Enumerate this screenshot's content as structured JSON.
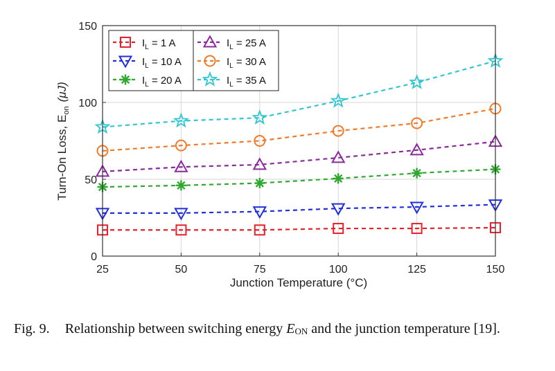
{
  "chart_data": {
    "type": "line",
    "x": [
      25,
      50,
      75,
      100,
      125,
      150
    ],
    "xlabel": "Junction Temperature (°C)",
    "ylabel_main": "Turn-On Loss, E",
    "ylabel_sub": "on",
    "ylabel_unit": "(μJ)",
    "xlim": [
      25,
      150
    ],
    "ylim": [
      0,
      150
    ],
    "yticks": [
      0,
      50,
      100,
      150
    ],
    "xticks": [
      25,
      50,
      75,
      100,
      125,
      150
    ],
    "grid": true,
    "legend_position": "top-left",
    "series": [
      {
        "label_prefix": "I",
        "label_sub": "L",
        "label_suffix": " = 1 A",
        "marker": "square",
        "color": "#e8202a",
        "values": [
          17,
          17,
          17,
          18,
          18,
          18.5
        ]
      },
      {
        "label_prefix": "I",
        "label_sub": "L",
        "label_suffix": " = 10 A",
        "marker": "triangle-down",
        "color": "#1f2fe0",
        "values": [
          28,
          28,
          29,
          31,
          32,
          33.5
        ]
      },
      {
        "label_prefix": "I",
        "label_sub": "L",
        "label_suffix": " = 20 A",
        "marker": "asterisk",
        "color": "#2fa82f",
        "values": [
          45,
          46,
          47.5,
          50.5,
          54,
          56.5
        ]
      },
      {
        "label_prefix": "I",
        "label_sub": "L",
        "label_suffix": " = 25 A",
        "marker": "triangle-up",
        "color": "#8a2a9a",
        "values": [
          55,
          58,
          59.5,
          64,
          69,
          74.5
        ]
      },
      {
        "label_prefix": "I",
        "label_sub": "L",
        "label_suffix": " = 30 A",
        "marker": "circle",
        "color": "#f07a28",
        "values": [
          68.5,
          72,
          75,
          81.5,
          86.5,
          96
        ]
      },
      {
        "label_prefix": "I",
        "label_sub": "L",
        "label_suffix": " = 35 A",
        "marker": "star",
        "color": "#2ec6cf",
        "values": [
          84,
          88,
          90,
          101,
          113,
          127
        ]
      }
    ]
  },
  "caption": {
    "label": "Fig. 9.",
    "text_before": "Relationship between switching energy ",
    "symbol": "E",
    "symbol_sub": "ON",
    "text_after": " and the junction temperature [19]."
  }
}
